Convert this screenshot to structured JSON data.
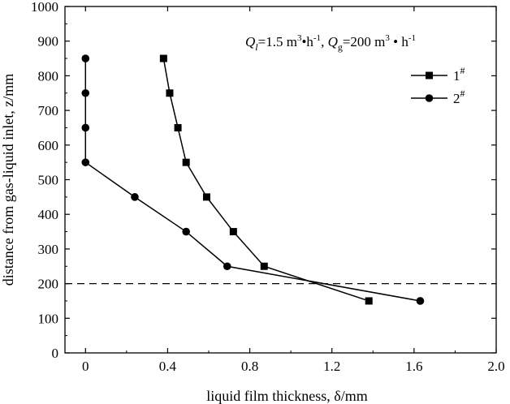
{
  "chart_data": {
    "type": "line",
    "title": "",
    "xlabel": "liquid film thickness, δ/mm",
    "ylabel": "distance from gas-liquid inlet, z/mm",
    "xlim": [
      -0.1,
      2.0
    ],
    "ylim": [
      0,
      1000
    ],
    "xticks": [
      0,
      0.4,
      0.8,
      1.2,
      1.6,
      2.0
    ],
    "xtick_labels": [
      "0",
      "0.4",
      "0.8",
      "1.2",
      "1.6",
      "2.0"
    ],
    "yticks": [
      0,
      100,
      200,
      300,
      400,
      500,
      600,
      700,
      800,
      900,
      1000
    ],
    "ytick_labels": [
      "0",
      "100",
      "200",
      "300",
      "400",
      "500",
      "600",
      "700",
      "800",
      "900",
      "1000"
    ],
    "grid": false,
    "legend_position": "top-right",
    "annotation": "Ql=1.5 m³•h⁻¹, Qg=200 m³•h⁻¹",
    "reference_line": {
      "y": 200,
      "style": "dashed"
    },
    "series": [
      {
        "name": "1#",
        "marker": "square",
        "x": [
          0.38,
          0.41,
          0.45,
          0.49,
          0.59,
          0.72,
          0.87,
          1.38
        ],
        "y": [
          850,
          750,
          650,
          550,
          450,
          350,
          250,
          150
        ]
      },
      {
        "name": "2#",
        "marker": "circle",
        "x": [
          0.0,
          0.0,
          0.0,
          0.0,
          0.24,
          0.49,
          0.69,
          1.63
        ],
        "y": [
          850,
          750,
          650,
          550,
          450,
          350,
          250,
          150
        ]
      }
    ]
  }
}
